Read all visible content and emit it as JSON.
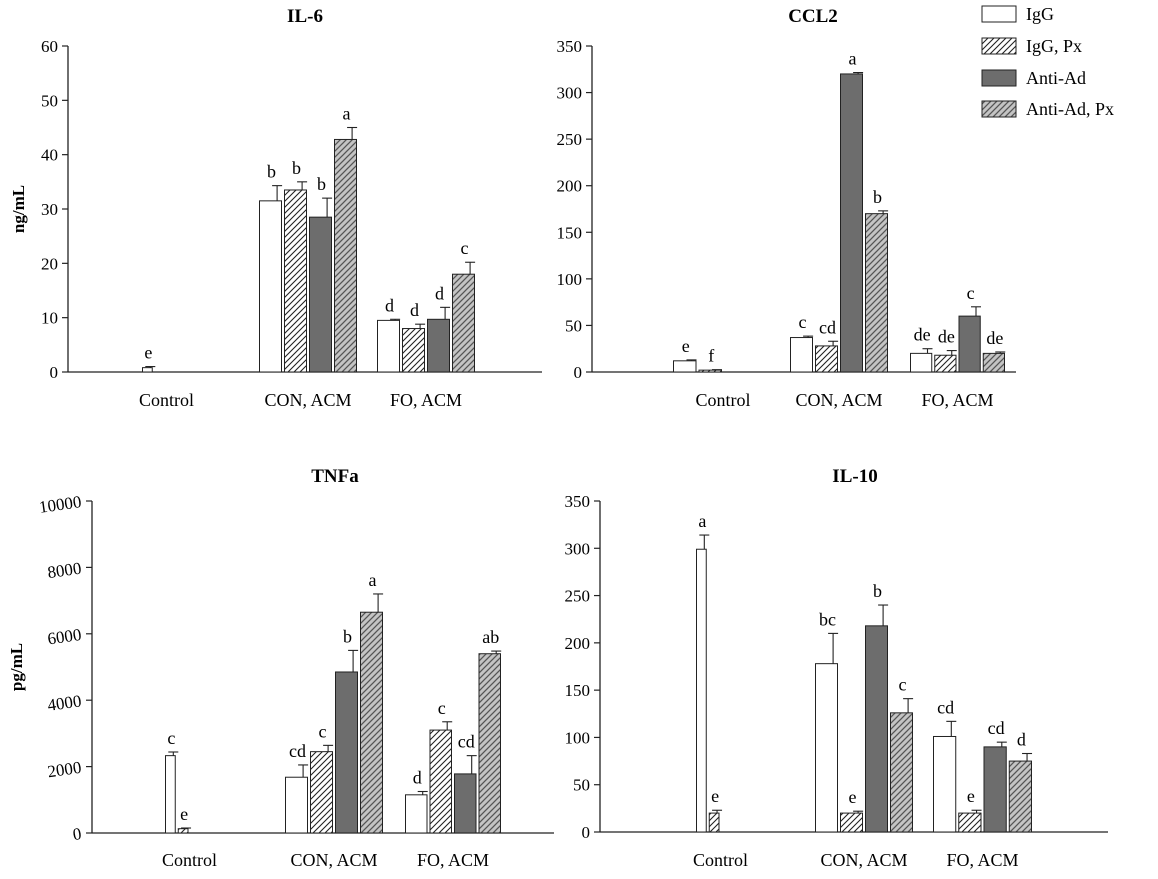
{
  "series_names": [
    "IgG",
    "IgG, Px",
    "Anti-Ad",
    "Anti-Ad, Px"
  ],
  "chart_data": [
    {
      "type": "bar",
      "title": "IL-6",
      "ylabel": "ng/mL",
      "xlabel": "",
      "ylim": [
        0,
        60
      ],
      "yticks": [
        0,
        10,
        20,
        30,
        40,
        50,
        60
      ],
      "categories": [
        "Control",
        "CON, ACM",
        "FO, ACM"
      ],
      "series": [
        {
          "name": "IgG",
          "values": [
            0.8,
            31.5,
            9.5
          ],
          "errors": [
            0.2,
            2.8,
            0.2
          ],
          "labels": [
            "e",
            "b",
            "d"
          ]
        },
        {
          "name": "IgG, Px",
          "values": [
            null,
            33.5,
            8.0
          ],
          "errors": [
            null,
            1.5,
            0.8
          ],
          "labels": [
            null,
            "b",
            "d"
          ]
        },
        {
          "name": "Anti-Ad",
          "values": [
            null,
            28.5,
            9.7
          ],
          "errors": [
            null,
            3.5,
            2.2
          ],
          "labels": [
            null,
            "b",
            "d"
          ]
        },
        {
          "name": "Anti-Ad, Px",
          "values": [
            null,
            42.8,
            18.0
          ],
          "errors": [
            null,
            2.2,
            2.2
          ],
          "labels": [
            null,
            "a",
            "c"
          ]
        }
      ]
    },
    {
      "type": "bar",
      "title": "CCL2",
      "ylabel": "",
      "xlabel": "",
      "ylim": [
        0,
        350
      ],
      "yticks": [
        0,
        50,
        100,
        150,
        200,
        250,
        300,
        350
      ],
      "categories": [
        "Control",
        "CON, ACM",
        "FO, ACM"
      ],
      "series": [
        {
          "name": "IgG",
          "values": [
            12,
            37,
            20
          ],
          "errors": [
            1,
            1.5,
            5
          ],
          "labels": [
            "e",
            "c",
            "de"
          ]
        },
        {
          "name": "IgG, Px",
          "values": [
            2,
            28,
            18
          ],
          "errors": [
            0.5,
            5,
            5
          ],
          "labels": [
            "f",
            "cd",
            "de"
          ]
        },
        {
          "name": "Anti-Ad",
          "values": [
            null,
            320,
            60
          ],
          "errors": [
            null,
            1.5,
            10
          ],
          "labels": [
            null,
            "a",
            "c"
          ]
        },
        {
          "name": "Anti-Ad, Px",
          "values": [
            null,
            170,
            20
          ],
          "errors": [
            null,
            3,
            1.5
          ],
          "labels": [
            null,
            "b",
            "de"
          ]
        }
      ]
    },
    {
      "type": "bar",
      "title": "TNFa",
      "ylabel": "pg/mL",
      "xlabel": "",
      "ylim": [
        0,
        10000
      ],
      "yticks": [
        0,
        2000,
        4000,
        6000,
        8000,
        10000
      ],
      "categories": [
        "Control",
        "CON, ACM",
        "FO, ACM"
      ],
      "series": [
        {
          "name": "IgG",
          "values": [
            2330,
            1680,
            1150
          ],
          "errors": [
            110,
            370,
            100
          ],
          "labels": [
            "c",
            "cd",
            "d"
          ]
        },
        {
          "name": "IgG, Px",
          "values": [
            130,
            2450,
            3100
          ],
          "errors": [
            20,
            190,
            250
          ],
          "labels": [
            "e",
            "c",
            "c"
          ]
        },
        {
          "name": "Anti-Ad",
          "values": [
            null,
            4850,
            1780
          ],
          "errors": [
            null,
            650,
            550
          ],
          "labels": [
            null,
            "b",
            "cd"
          ]
        },
        {
          "name": "Anti-Ad, Px",
          "values": [
            null,
            6650,
            5400
          ],
          "errors": [
            null,
            550,
            80
          ],
          "labels": [
            null,
            "a",
            "ab"
          ]
        }
      ]
    },
    {
      "type": "bar",
      "title": "IL-10",
      "ylabel": "",
      "xlabel": "",
      "ylim": [
        0,
        350
      ],
      "yticks": [
        0,
        50,
        100,
        150,
        200,
        250,
        300,
        350
      ],
      "categories": [
        "Control",
        "CON, ACM",
        "FO, ACM"
      ],
      "series": [
        {
          "name": "IgG",
          "values": [
            299,
            178,
            101
          ],
          "errors": [
            15,
            32,
            16
          ],
          "labels": [
            "a",
            "bc",
            "cd"
          ]
        },
        {
          "name": "IgG, Px",
          "values": [
            20,
            20,
            20
          ],
          "errors": [
            3,
            2,
            3
          ],
          "labels": [
            "e",
            "e",
            "e"
          ]
        },
        {
          "name": "Anti-Ad",
          "values": [
            null,
            218,
            90
          ],
          "errors": [
            null,
            22,
            5
          ],
          "labels": [
            null,
            "b",
            "cd"
          ]
        },
        {
          "name": "Anti-Ad, Px",
          "values": [
            null,
            126,
            75
          ],
          "errors": [
            null,
            15,
            8
          ],
          "labels": [
            null,
            "c",
            "d"
          ]
        }
      ]
    }
  ]
}
